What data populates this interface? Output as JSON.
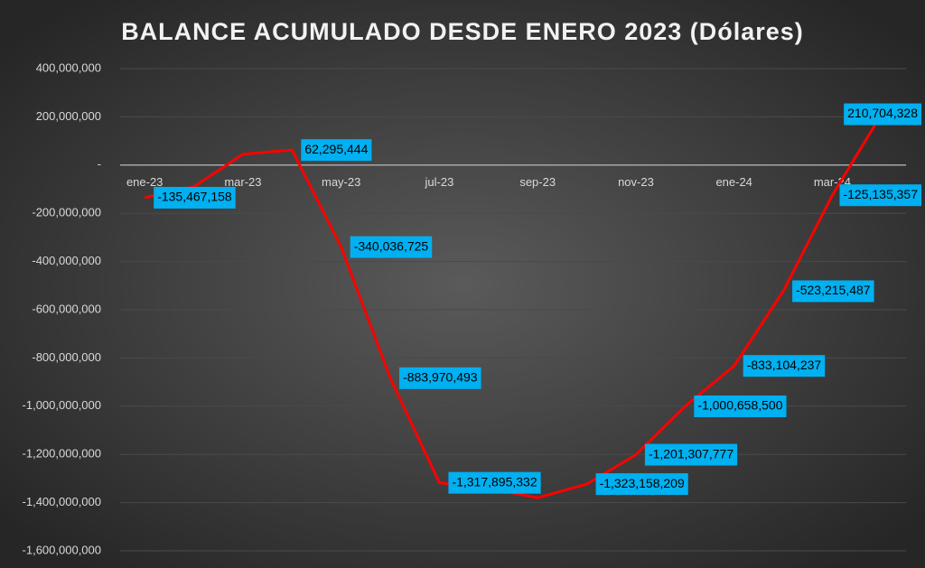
{
  "chart_data": {
    "type": "line",
    "title": "BALANCE ACUMULADO DESDE ENERO 2023 (Dólares)",
    "categories": [
      "ene-23",
      null,
      "mar-23",
      null,
      "may-23",
      null,
      "jul-23",
      null,
      "sep-23",
      null,
      "nov-23",
      null,
      "ene-24",
      null,
      "mar-24",
      null
    ],
    "series": [
      {
        "name": "Balance",
        "color": "#ff0000",
        "values": [
          -135467158,
          -90000000,
          45000000,
          62295444,
          -340036725,
          -883970493,
          -1317895332,
          -1340000000,
          -1380000000,
          -1323158209,
          -1201307777,
          -1000658500,
          -833104237,
          -523215487,
          -125135357,
          210704328
        ],
        "value_labels": [
          "-135,467,158",
          null,
          null,
          "62,295,444",
          "-340,036,725",
          "-883,970,493",
          "-1,317,895,332",
          null,
          null,
          "-1,323,158,209",
          "-1,201,307,777",
          "-1,000,658,500",
          "-833,104,237",
          "-523,215,487",
          "-125,135,357",
          "210,704,328"
        ]
      }
    ],
    "ylim": [
      -1600000000,
      400000000
    ],
    "yticks": [
      {
        "value": 400000000,
        "label": "400,000,000"
      },
      {
        "value": 200000000,
        "label": "200,000,000"
      },
      {
        "value": 0,
        "label": "-"
      },
      {
        "value": -200000000,
        "label": "-200,000,000"
      },
      {
        "value": -400000000,
        "label": "-400,000,000"
      },
      {
        "value": -600000000,
        "label": "-600,000,000"
      },
      {
        "value": -800000000,
        "label": "-800,000,000"
      },
      {
        "value": -1000000000,
        "label": "-1,000,000,000"
      },
      {
        "value": -1200000000,
        "label": "-1,200,000,000"
      },
      {
        "value": -1400000000,
        "label": "-1,400,000,000"
      },
      {
        "value": -1600000000,
        "label": "-1,600,000,000"
      }
    ],
    "grid": true,
    "label_color": "#00b0f0"
  }
}
